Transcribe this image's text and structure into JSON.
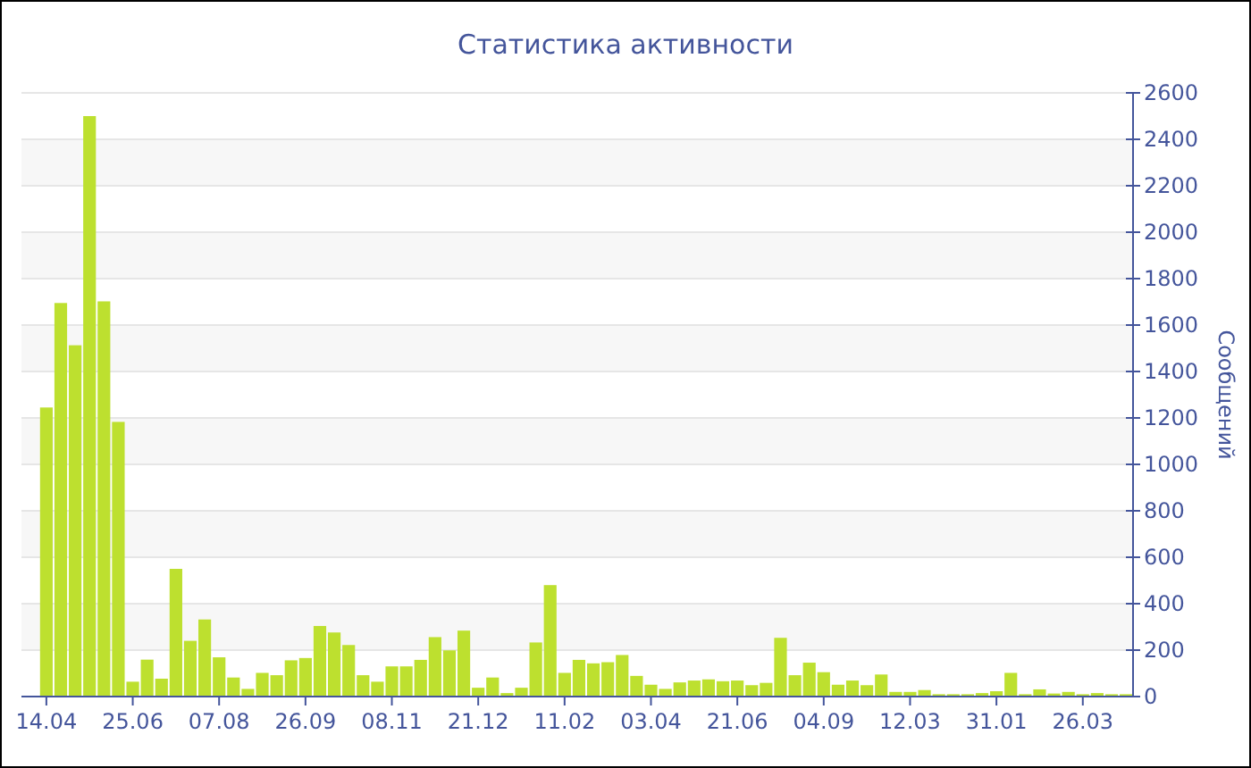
{
  "chart_data": {
    "type": "bar",
    "title": "Статистика активности",
    "ylabel": "Сообщений",
    "categories": [
      "14.04",
      null,
      null,
      null,
      null,
      null,
      "25.06",
      null,
      null,
      null,
      null,
      null,
      "07.08",
      null,
      null,
      null,
      null,
      null,
      "26.09",
      null,
      null,
      null,
      null,
      null,
      "08.11",
      null,
      null,
      null,
      null,
      null,
      "21.12",
      null,
      null,
      null,
      null,
      null,
      "11.02",
      null,
      null,
      null,
      null,
      null,
      "03.04",
      null,
      null,
      null,
      null,
      null,
      "21.06",
      null,
      null,
      null,
      null,
      null,
      "04.09",
      null,
      null,
      null,
      null,
      null,
      "12.03",
      null,
      null,
      null,
      null,
      null,
      "31.01",
      null,
      null,
      null,
      null,
      null,
      "26.03",
      null,
      null,
      null
    ],
    "values": [
      1245,
      1695,
      1513,
      2500,
      1702,
      1183,
      64,
      159,
      77,
      550,
      240,
      332,
      169,
      82,
      33,
      102,
      92,
      156,
      166,
      304,
      276,
      222,
      92,
      64,
      130,
      130,
      158,
      256,
      199,
      284,
      38,
      82,
      15,
      38,
      233,
      480,
      102,
      158,
      143,
      148,
      179,
      89,
      51,
      33,
      61,
      69,
      74,
      66,
      69,
      49,
      59,
      253,
      92,
      146,
      105,
      51,
      69,
      49,
      95,
      20,
      20,
      28,
      10,
      10,
      10,
      15,
      23,
      102,
      10,
      31,
      13,
      20,
      10,
      15,
      10,
      10
    ],
    "color": "#bde02f",
    "ylim": [
      0,
      2600
    ],
    "yticks": [
      0,
      200,
      400,
      600,
      800,
      1000,
      1200,
      1400,
      1600,
      1800,
      2000,
      2200,
      2400,
      2600
    ],
    "grid": "y"
  }
}
